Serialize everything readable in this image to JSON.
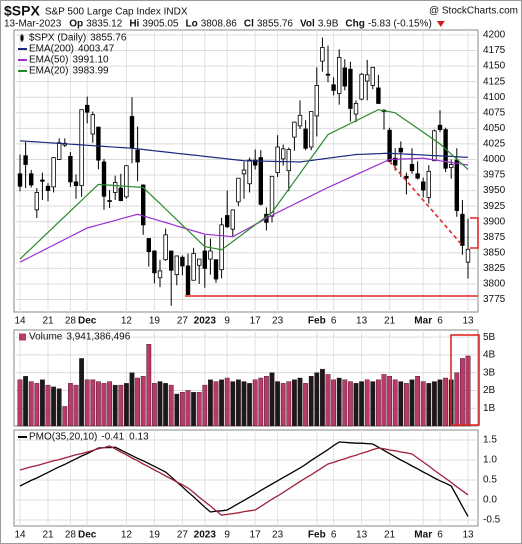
{
  "header": {
    "symbol": "$SPX",
    "name": "S&P 500 Large Cap Index INDX",
    "source": "@ StockCharts.com",
    "date": "13-Mar-2023",
    "stats": [
      {
        "label": "Op",
        "value": "3835.12"
      },
      {
        "label": "Hi",
        "value": "3905.05"
      },
      {
        "label": "Lo",
        "value": "3808.86"
      },
      {
        "label": "Cl",
        "value": "3855.76"
      },
      {
        "label": "Vol",
        "value": "3.9B"
      },
      {
        "label": "Chg",
        "value": "-5.83 (-0.15%)"
      }
    ]
  },
  "chart_data": [
    {
      "type": "candlestick",
      "name": "$SPX (Daily)",
      "legend_value": "3855.76",
      "candle_color": "#000000",
      "categories": [
        "14",
        null,
        null,
        null,
        null,
        "21",
        null,
        null,
        null,
        "28",
        null,
        null,
        "Dec",
        null,
        null,
        null,
        null,
        null,
        null,
        "12",
        null,
        null,
        null,
        null,
        "19",
        null,
        null,
        null,
        null,
        "27",
        null,
        null,
        null,
        "2023",
        null,
        null,
        null,
        "9",
        null,
        null,
        null,
        null,
        "17",
        null,
        null,
        null,
        "23",
        null,
        null,
        null,
        null,
        null,
        null,
        "Feb",
        null,
        null,
        "6",
        null,
        null,
        null,
        null,
        "13",
        null,
        null,
        null,
        null,
        "21",
        null,
        null,
        null,
        null,
        null,
        "Mar",
        null,
        null,
        "6",
        null,
        null,
        null,
        null,
        "13"
      ],
      "open": [
        3977,
        4006,
        3977,
        3919,
        3967,
        3957,
        3956,
        4000,
        4023,
        4005,
        3964,
        3958,
        4087,
        4041,
        4052,
        3996,
        3934,
        3947,
        3954,
        3940,
        4069,
        4015,
        3959,
        3873,
        3853,
        3810,
        3839,
        3853,
        3815,
        3843,
        3829,
        3806,
        3830,
        3853,
        3840,
        3839,
        3823,
        3910,
        3888,
        3932,
        3977,
        3961,
        3999,
        4003,
        3912,
        3909,
        3979,
        4001,
        3982,
        4036,
        4054,
        4049,
        4020,
        4070,
        4158,
        4137,
        4120,
        4106,
        4147,
        4145,
        4073,
        4097,
        4126,
        4119,
        4115,
        4077,
        4047,
        4002,
        4018,
        3973,
        3992,
        3977,
        3964,
        3939,
        3998,
        4055,
        4048,
        3987,
        3999,
        3912,
        3835.12
      ],
      "high": [
        4008,
        4028,
        3983,
        3954,
        3979,
        3962,
        4004,
        4034,
        4034,
        4012,
        3976,
        4080,
        4101,
        4077,
        4053,
        4001,
        3951,
        3974,
        3977,
        3991,
        4100,
        4053,
        3960,
        3874,
        3854,
        3839,
        3889,
        3853,
        3846,
        3846,
        3849,
        3858,
        3840,
        3879,
        3873,
        3839,
        3906,
        3950,
        3919,
        3970,
        3997,
        4003,
        4016,
        4015,
        3923,
        3973,
        4039,
        4024,
        4019,
        4061,
        4095,
        4063,
        4077,
        4148,
        4196,
        4183,
        4132,
        4177,
        4161,
        4157,
        4095,
        4139,
        4160,
        4149,
        4136,
        4081,
        4051,
        4018,
        4029,
        3979,
        4018,
        3997,
        3971,
        3991,
        4048,
        4079,
        4051,
        4000,
        4018,
        3935,
        3905.05
      ],
      "low": [
        3949,
        3954,
        3955,
        3906,
        3935,
        3933,
        3947,
        3999,
        4020,
        3956,
        3937,
        3940,
        4058,
        4027,
        3984,
        3919,
        3922,
        3935,
        3933,
        3937,
        3994,
        3965,
        3879,
        3828,
        3801,
        3795,
        3837,
        3765,
        3798,
        3814,
        3783,
        3806,
        3800,
        3794,
        3815,
        3802,
        3809,
        3890,
        3877,
        3925,
        3937,
        3947,
        3984,
        3926,
        3886,
        3899,
        3972,
        3990,
        3949,
        4014,
        4049,
        4015,
        4015,
        4037,
        4141,
        4124,
        4103,
        4088,
        4111,
        4061,
        4060,
        4095,
        4095,
        4113,
        4089,
        4048,
        3996,
        3982,
        3972,
        3944,
        3977,
        3968,
        3939,
        3929,
        3998,
        4044,
        3980,
        3969,
        3908,
        3847,
        3808.86
      ],
      "close": [
        3957,
        3992,
        3959,
        3947,
        3965,
        3950,
        4003,
        4027,
        4026,
        3964,
        3958,
        4080,
        4076,
        4072,
        3999,
        3941,
        3933,
        3963,
        3934,
        3990,
        4019,
        3996,
        3895,
        3852,
        3818,
        3821,
        3879,
        3822,
        3845,
        3829,
        3783,
        3849,
        3840,
        3825,
        3853,
        3808,
        3895,
        3892,
        3919,
        3970,
        3983,
        3999,
        3991,
        3928,
        3899,
        3973,
        4020,
        4017,
        4016,
        4060,
        4071,
        4018,
        4077,
        4119,
        4180,
        4136,
        4111,
        4164,
        4118,
        4082,
        4090,
        4137,
        4136,
        4148,
        4090,
        4079,
        3997,
        3991,
        4012,
        3970,
        3982,
        3970,
        3951,
        3981,
        4046,
        4048,
        3986,
        3992,
        3918,
        3862,
        3855.76
      ],
      "series": [
        {
          "name": "EMA(200)",
          "color": "#1c2a80",
          "legend_value": "4003.47",
          "values": [
            4030,
            4029.4,
            4028.8,
            4028.2,
            4027.6,
            4027,
            4026.4,
            4025.8,
            4025.2,
            4024.6,
            4024,
            4023.4,
            4022.8,
            4022.2,
            4021.6,
            4021,
            4020.4,
            4019.8,
            4019.2,
            4018.6,
            4018,
            4017,
            4016,
            4015,
            4014,
            4013,
            4012,
            4011,
            4010,
            4009,
            4008,
            4007,
            4006,
            4005,
            4004,
            4003,
            4002,
            4001,
            4000,
            3999,
            3998,
            3997.8,
            3997.6,
            3997.4,
            3997.2,
            3997,
            3996.8,
            3996.6,
            3996.4,
            3996.2,
            3996,
            3997.2,
            3998.4,
            3999.6,
            4000.8,
            4002,
            4003.2,
            4004.4,
            4005.6,
            4006.8,
            4008,
            4008.3,
            4008.7,
            4009,
            4009.3,
            4009.7,
            4010,
            4009.5,
            4009.1,
            4008.6,
            4008.1,
            4007.7,
            4007.2,
            4006.7,
            4006.3,
            4005.8,
            4005.3,
            4004.9,
            4004.4,
            4003.9,
            4003.47
          ]
        },
        {
          "name": "EMA(50)",
          "color": "#9b30d0",
          "legend_value": "3991.10",
          "values": [
            3835,
            3839.6,
            3844.2,
            3848.8,
            3853.3,
            3857.9,
            3862.5,
            3867.1,
            3871.7,
            3876.3,
            3880.8,
            3885.4,
            3890,
            3892.4,
            3894.9,
            3897.3,
            3899.8,
            3902.2,
            3904.7,
            3907.1,
            3909.6,
            3912,
            3909.3,
            3906.7,
            3904,
            3901.3,
            3898.7,
            3896,
            3893.3,
            3890.7,
            3888,
            3885.3,
            3882.7,
            3880,
            3879.2,
            3878.4,
            3877.6,
            3876.8,
            3876,
            3880.9,
            3885.8,
            3890.6,
            3895.5,
            3900.4,
            3905.3,
            3910.1,
            3915,
            3919.4,
            3923.9,
            3928.3,
            3932.8,
            3937.2,
            3941.7,
            3946.1,
            3950.6,
            3955,
            3959.1,
            3963.2,
            3967.3,
            3971.4,
            3975.5,
            3979.5,
            3983.6,
            3987.7,
            3991.8,
            3995.9,
            4000,
            4000.3,
            4000.7,
            4001,
            4001.3,
            4001.7,
            4002,
            4000.6,
            3999.3,
            3997.9,
            3996.6,
            3995.2,
            3993.8,
            3992.5,
            3991.1
          ]
        },
        {
          "name": "EMA(20)",
          "color": "#2a8a2a",
          "legend_value": "3983.99",
          "values": [
            3840,
            3848.6,
            3857.1,
            3865.7,
            3874.3,
            3882.9,
            3891.4,
            3900,
            3908.6,
            3917.1,
            3925.7,
            3934.3,
            3942.9,
            3951.4,
            3960,
            3959.4,
            3958.8,
            3958.1,
            3957.5,
            3956.9,
            3956.3,
            3955.6,
            3955,
            3946.4,
            3937.7,
            3929.1,
            3920.5,
            3911.8,
            3903.2,
            3894.5,
            3885.9,
            3877.3,
            3868.6,
            3860,
            3858.3,
            3856.7,
            3855,
            3861.7,
            3868.3,
            3875,
            3881.7,
            3888.3,
            3895,
            3901.7,
            3908.3,
            3915,
            3927.5,
            3940,
            3952.5,
            3965,
            3977.5,
            3990,
            4002.5,
            4015,
            4027.5,
            4040,
            4044.4,
            4048.9,
            4053.3,
            4057.8,
            4062.2,
            4066.7,
            4071.1,
            4075.6,
            4080,
            4078.3,
            4076.7,
            4075,
            4068.8,
            4062.5,
            4056.3,
            4050,
            4043.8,
            4037.5,
            4031.3,
            4025,
            4016.8,
            4008.6,
            4000.4,
            3992.2,
            3983.99
          ]
        }
      ],
      "ylim": [
        3755,
        4208
      ],
      "yticks": [
        3775,
        3800,
        3825,
        3850,
        3875,
        3900,
        3925,
        3950,
        3975,
        4000,
        4025,
        4050,
        4075,
        4100,
        4125,
        4150,
        4175,
        4200
      ],
      "grid": true
    },
    {
      "type": "bar",
      "title": "Volume",
      "title_value": "3,941,386,496",
      "up_color": "#1a1a1a",
      "down_color": "#b83a68",
      "values": [
        2600000000.0,
        2800000000.0,
        2500000000.0,
        2400000000.0,
        2600000000.0,
        2300000000.0,
        2200000000.0,
        2100000000.0,
        1100000000.0,
        2400000000.0,
        2300000000.0,
        3800000000.0,
        2600000000.0,
        2600000000.0,
        2500000000.0,
        2400000000.0,
        2500000000.0,
        2300000000.0,
        2300000000.0,
        2400000000.0,
        3000000000.0,
        2700000000.0,
        2800000000.0,
        4600000000.0,
        2400000000.0,
        2500000000.0,
        2400000000.0,
        2300000000.0,
        1800000000.0,
        1900000000.0,
        2000000000.0,
        1900000000.0,
        1900000000.0,
        2300000000.0,
        2600000000.0,
        2500000000.0,
        2600000000.0,
        2700000000.0,
        2500000000.0,
        2600000000.0,
        2500000000.0,
        2400000000.0,
        2600000000.0,
        2700000000.0,
        2800000000.0,
        3000000000.0,
        2500000000.0,
        2400000000.0,
        2500000000.0,
        2600000000.0,
        2700000000.0,
        2400000000.0,
        2800000000.0,
        3000000000.0,
        3200000000.0,
        2900000000.0,
        2600000000.0,
        2700000000.0,
        2600000000.0,
        2500000000.0,
        2400000000.0,
        2500000000.0,
        2600000000.0,
        2500000000.0,
        2600000000.0,
        2900000000.0,
        2800000000.0,
        2600000000.0,
        2500000000.0,
        2400000000.0,
        2600000000.0,
        2800000000.0,
        2500000000.0,
        2400000000.0,
        2500000000.0,
        2600000000.0,
        2700000000.0,
        2600000000.0,
        3000000000.0,
        3800000000.0,
        3941386496
      ],
      "ylim": [
        0,
        5400000000.0
      ],
      "yticks": [
        {
          "value": 1000000000.0,
          "label": "1B"
        },
        {
          "value": 2000000000.0,
          "label": "2B"
        },
        {
          "value": 3000000000.0,
          "label": "3B"
        },
        {
          "value": 4000000000.0,
          "label": "4B"
        },
        {
          "value": 5000000000.0,
          "label": "5B"
        }
      ],
      "grid": true
    },
    {
      "type": "line",
      "title": "PMO(35,20,10)",
      "categories": [
        "14",
        null,
        null,
        null,
        null,
        "21",
        null,
        null,
        null,
        "28",
        null,
        null,
        "Dec",
        null,
        null,
        null,
        null,
        null,
        null,
        "12",
        null,
        null,
        null,
        null,
        "19",
        null,
        null,
        null,
        null,
        "27",
        null,
        null,
        null,
        "2023",
        null,
        null,
        null,
        "9",
        null,
        null,
        null,
        null,
        "17",
        null,
        null,
        null,
        "23",
        null,
        null,
        null,
        null,
        null,
        null,
        "Feb",
        null,
        null,
        "6",
        null,
        null,
        null,
        null,
        "13",
        null,
        null,
        null,
        null,
        "21",
        null,
        null,
        null,
        null,
        null,
        "Mar",
        null,
        null,
        "6",
        null,
        null,
        null,
        null,
        "13"
      ],
      "series": [
        {
          "color": "#000000",
          "legend_value": "-0.41",
          "values": [
            0.35,
            0.42,
            0.49,
            0.55,
            0.62,
            0.69,
            0.76,
            0.83,
            0.89,
            0.96,
            1.03,
            1.1,
            1.16,
            1.23,
            1.3,
            1.31,
            1.31,
            1.32,
            1.25,
            1.18,
            1.11,
            1.04,
            0.98,
            0.91,
            0.84,
            0.77,
            0.7,
            0.58,
            0.45,
            0.33,
            0.2,
            0.08,
            -0.05,
            -0.18,
            -0.3,
            -0.28,
            -0.27,
            -0.25,
            -0.17,
            -0.09,
            -0.01,
            0.07,
            0.15,
            0.24,
            0.32,
            0.4,
            0.48,
            0.56,
            0.64,
            0.72,
            0.8,
            0.89,
            0.99,
            1.08,
            1.17,
            1.26,
            1.36,
            1.45,
            1.44,
            1.43,
            1.42,
            1.42,
            1.41,
            1.4,
            1.32,
            1.24,
            1.16,
            1.08,
            1.0,
            0.93,
            0.85,
            0.78,
            0.7,
            0.63,
            0.55,
            0.48,
            0.42,
            0.35,
            0.1,
            -0.16,
            -0.41
          ]
        },
        {
          "color": "#a0203c",
          "legend_value": "0.13",
          "values": [
            0.75,
            0.79,
            0.83,
            0.86,
            0.9,
            0.94,
            0.98,
            1.01,
            1.05,
            1.09,
            1.13,
            1.16,
            1.2,
            1.24,
            1.28,
            1.31,
            1.35,
            1.28,
            1.2,
            1.13,
            1.05,
            0.98,
            0.9,
            0.83,
            0.75,
            0.68,
            0.6,
            0.53,
            0.45,
            0.38,
            0.3,
            0.19,
            0.07,
            -0.04,
            -0.15,
            -0.27,
            -0.38,
            -0.36,
            -0.34,
            -0.32,
            -0.29,
            -0.27,
            -0.25,
            -0.16,
            -0.07,
            0.02,
            0.1,
            0.19,
            0.28,
            0.37,
            0.46,
            0.55,
            0.63,
            0.72,
            0.81,
            0.9,
            0.94,
            0.99,
            1.03,
            1.08,
            1.12,
            1.17,
            1.21,
            1.26,
            1.3,
            1.28,
            1.25,
            1.23,
            1.2,
            1.18,
            1.15,
            1.05,
            0.95,
            0.85,
            0.74,
            0.64,
            0.54,
            0.44,
            0.33,
            0.23,
            0.13
          ]
        }
      ],
      "ylim": [
        -0.65,
        1.75
      ],
      "yticks": [
        -0.5,
        {
          "value": 0,
          "label": "0.0"
        },
        0.5,
        {
          "value": 1,
          "label": "1.0"
        },
        1.5
      ],
      "grid": true
    }
  ]
}
